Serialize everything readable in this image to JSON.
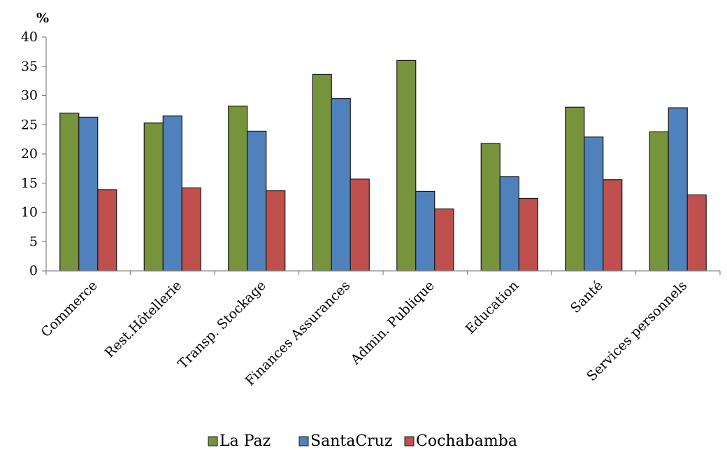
{
  "chart_data": {
    "type": "bar",
    "ylabel": "%",
    "ylim": [
      0,
      40
    ],
    "yticks": [
      0,
      5,
      10,
      15,
      20,
      25,
      30,
      35,
      40
    ],
    "grid": false,
    "legend_position": "bottom",
    "categories": [
      "Commerce",
      "Rest.Hôtellerie",
      "Transp. Stockage",
      "Finances Assurances",
      "Admin. Publique",
      "Education",
      "Santé",
      "Services personnels"
    ],
    "series": [
      {
        "name": "La Paz",
        "color": "#77933c",
        "values": [
          27.0,
          25.3,
          28.2,
          33.6,
          36.0,
          21.8,
          28.0,
          23.8
        ]
      },
      {
        "name": "SantaCruz",
        "color": "#4f81bd",
        "values": [
          26.3,
          26.5,
          23.9,
          29.5,
          13.6,
          16.1,
          22.9,
          27.9
        ]
      },
      {
        "name": "Cochabamba",
        "color": "#c0504d",
        "values": [
          13.9,
          14.2,
          13.7,
          15.7,
          10.6,
          12.4,
          15.6,
          13.0
        ]
      }
    ]
  }
}
